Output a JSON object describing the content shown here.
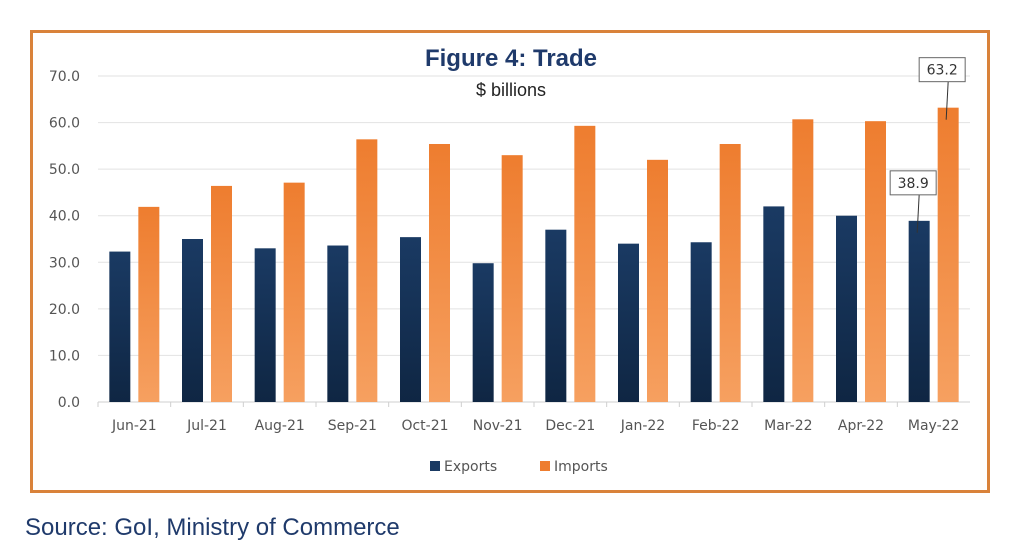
{
  "chart_data": {
    "type": "bar",
    "title": "Figure 4: Trade",
    "subtitle": "$ billions",
    "categories": [
      "Jun-21",
      "Jul-21",
      "Aug-21",
      "Sep-21",
      "Oct-21",
      "Nov-21",
      "Dec-21",
      "Jan-22",
      "Feb-22",
      "Mar-22",
      "Apr-22",
      "May-22"
    ],
    "series": [
      {
        "name": "Exports",
        "color": "#1a3a63",
        "values": [
          32.3,
          35.0,
          33.0,
          33.6,
          35.4,
          29.8,
          37.0,
          34.0,
          34.3,
          42.0,
          40.0,
          38.9
        ]
      },
      {
        "name": "Imports",
        "color": "#ee7d2f",
        "values": [
          41.9,
          46.4,
          47.1,
          56.4,
          55.4,
          53.0,
          59.3,
          52.0,
          55.4,
          60.7,
          60.3,
          63.2
        ]
      }
    ],
    "ylim": [
      0,
      70
    ],
    "yticks": [
      "0.0",
      "10.0",
      "20.0",
      "30.0",
      "40.0",
      "50.0",
      "60.0",
      "70.0"
    ],
    "grid": true,
    "legend": "bottom",
    "callouts": [
      {
        "series": "Exports",
        "category": "May-22",
        "label": "38.9"
      },
      {
        "series": "Imports",
        "category": "May-22",
        "label": "63.2"
      }
    ]
  },
  "source": "Source: GoI, Ministry of Commerce"
}
